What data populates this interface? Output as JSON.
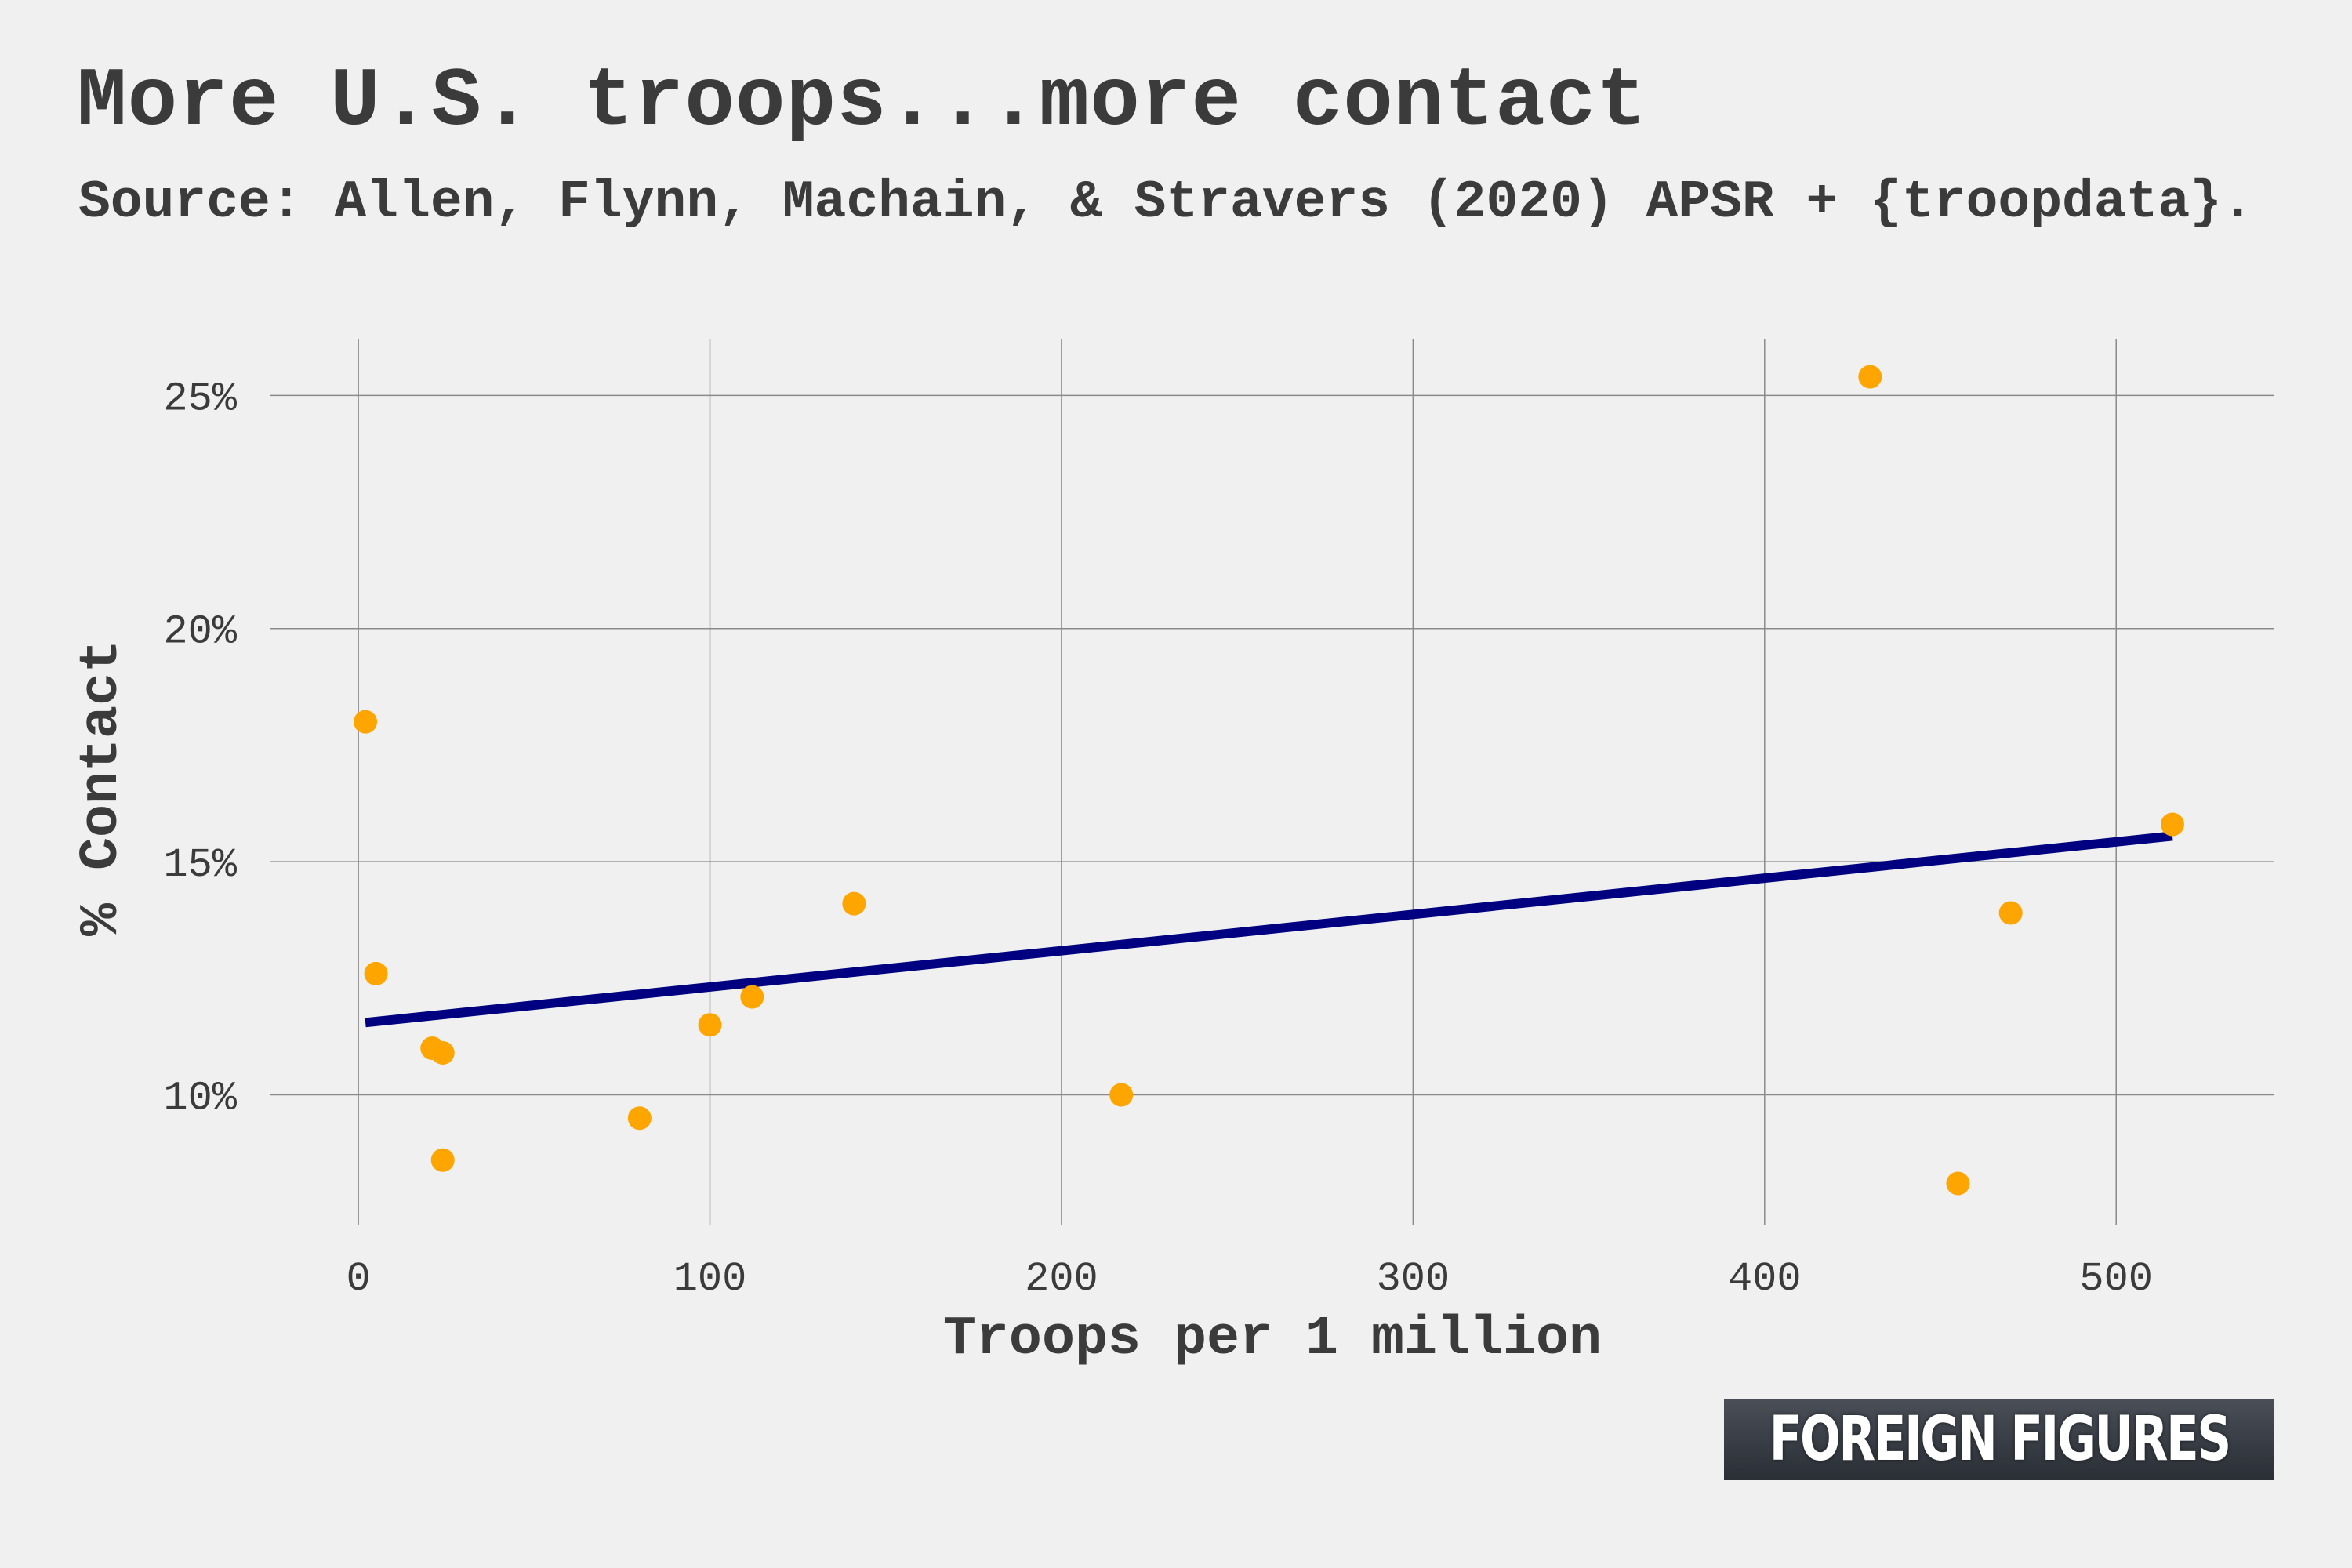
{
  "header": {
    "title": "More U.S. troops...more contact",
    "subtitle": "Source: Allen, Flynn, Machain, & Stravers (2020) APSR + {troopdata}."
  },
  "logo": {
    "text": "FOREIGN FIGURES"
  },
  "colors": {
    "point": "#ffa500",
    "trend": "#000080",
    "grid": "#8a8a8a",
    "background": "#f0f0f0"
  },
  "chart_data": {
    "type": "scatter",
    "xlabel": "Troops per 1 million",
    "ylabel": "% Contact",
    "xlim": [
      -25,
      545
    ],
    "ylim": [
      7.2,
      26.2
    ],
    "x_ticks": [
      0,
      100,
      200,
      300,
      400,
      500
    ],
    "x_tick_labels": [
      "0",
      "100",
      "200",
      "300",
      "400",
      "500"
    ],
    "y_ticks": [
      10,
      15,
      20,
      25
    ],
    "y_tick_labels": [
      "10%",
      "15%",
      "20%",
      "25%"
    ],
    "grid": true,
    "points": [
      {
        "x": 2,
        "y": 18.0
      },
      {
        "x": 5,
        "y": 12.6
      },
      {
        "x": 21,
        "y": 11.0
      },
      {
        "x": 24,
        "y": 10.9
      },
      {
        "x": 24,
        "y": 8.6
      },
      {
        "x": 80,
        "y": 9.5
      },
      {
        "x": 100,
        "y": 11.5
      },
      {
        "x": 112,
        "y": 12.1
      },
      {
        "x": 141,
        "y": 14.1
      },
      {
        "x": 217,
        "y": 10.0
      },
      {
        "x": 430,
        "y": 25.4
      },
      {
        "x": 455,
        "y": 8.1
      },
      {
        "x": 470,
        "y": 13.9
      },
      {
        "x": 516,
        "y": 15.8
      }
    ],
    "trend_line": {
      "x": [
        2,
        516
      ],
      "y": [
        11.55,
        15.55
      ]
    }
  }
}
